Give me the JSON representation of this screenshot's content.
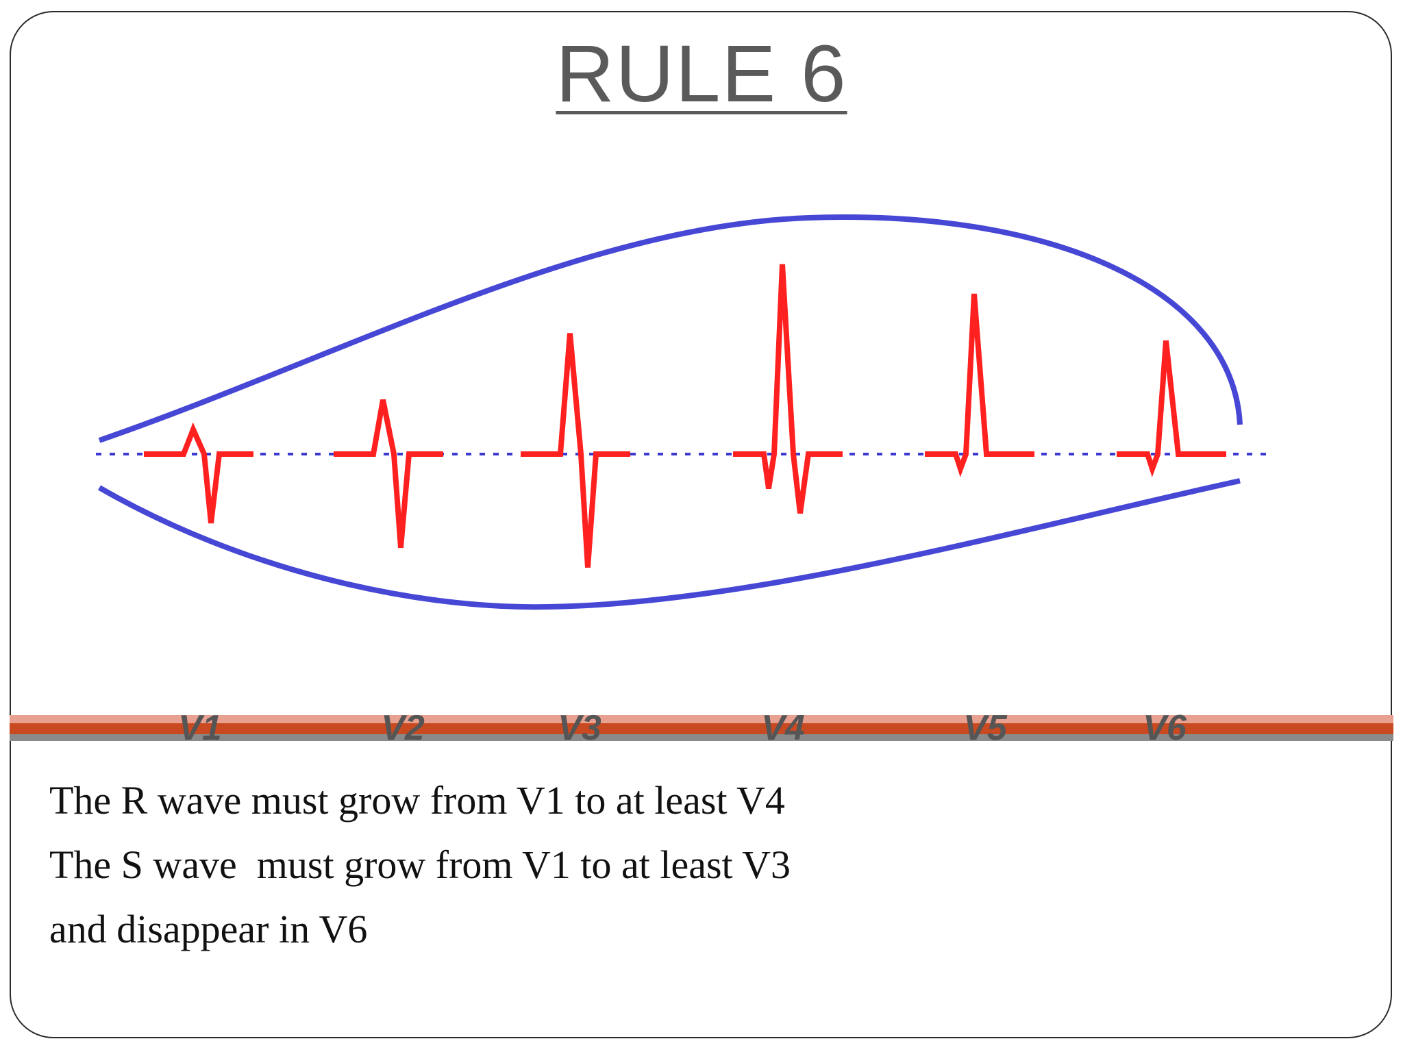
{
  "slide": {
    "title": "RULE 6",
    "leads": [
      {
        "label": "V1",
        "r": 0.1,
        "s": 0.28,
        "q": 0.0
      },
      {
        "label": "V2",
        "r": 0.22,
        "s": 0.38,
        "q": 0.0
      },
      {
        "label": "V3",
        "r": 0.49,
        "s": 0.46,
        "q": 0.0
      },
      {
        "label": "V4",
        "r": 0.77,
        "s": 0.24,
        "q": 0.14
      },
      {
        "label": "V5",
        "r": 0.65,
        "s": 0.0,
        "q": 0.06
      },
      {
        "label": "V6",
        "r": 0.46,
        "s": 0.0,
        "q": 0.06
      }
    ],
    "text_lines": [
      "The R wave must grow from V1 to at least V4",
      "The S wave  must grow from V1 to at least V3",
      "and disappear in V6"
    ],
    "colors": {
      "envelope": "#4747d6",
      "baseline": "#3a3ad0",
      "ecg": "#ff2020",
      "label": "#555555",
      "band_dark": "#c94a20",
      "band_light": "#e8a090",
      "band_gray": "#8a8a8a"
    }
  }
}
